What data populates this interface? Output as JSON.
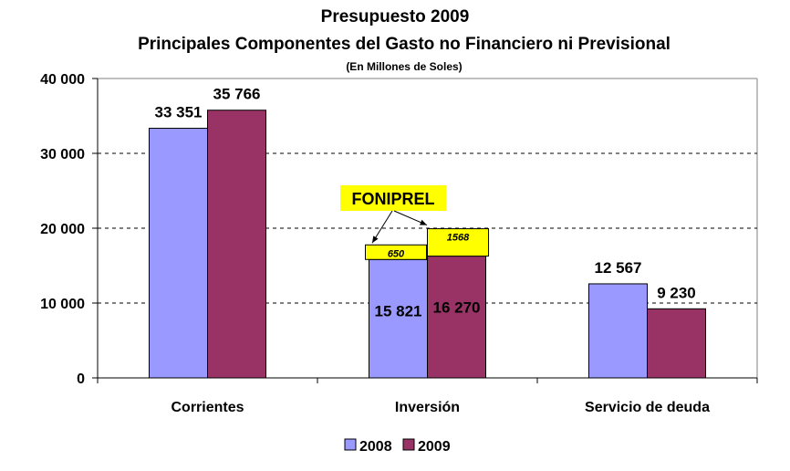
{
  "chart_data": {
    "type": "bar",
    "title": "Presupuesto 2009",
    "subtitle": "Principales Componentes del Gasto no Financiero ni Previsional",
    "units_note": "(En Millones de Soles)",
    "categories": [
      "Corrientes",
      "Inversión",
      "Servicio de deuda"
    ],
    "series": [
      {
        "name": "2008",
        "color": "#9999FF",
        "values": [
          33351,
          15821,
          12567
        ],
        "labels": [
          "33 351",
          "15 821",
          "12 567"
        ]
      },
      {
        "name": "2009",
        "color": "#993366",
        "values": [
          35766,
          16270,
          9230
        ],
        "labels": [
          "35 766",
          "16 270",
          "9 230"
        ]
      }
    ],
    "ylim": [
      0,
      40000
    ],
    "yticks": [
      0,
      10000,
      20000,
      30000,
      40000
    ],
    "ytick_labels": [
      "0",
      "10 000",
      "20 000",
      "30 000",
      "40 000"
    ],
    "grid": true,
    "legend_position": "bottom",
    "annotation": {
      "label": "FONIPREL",
      "color": "#FFFF00",
      "category": "Inversión",
      "values": [
        650,
        1568
      ],
      "value_labels": [
        "650",
        "1568"
      ]
    }
  }
}
